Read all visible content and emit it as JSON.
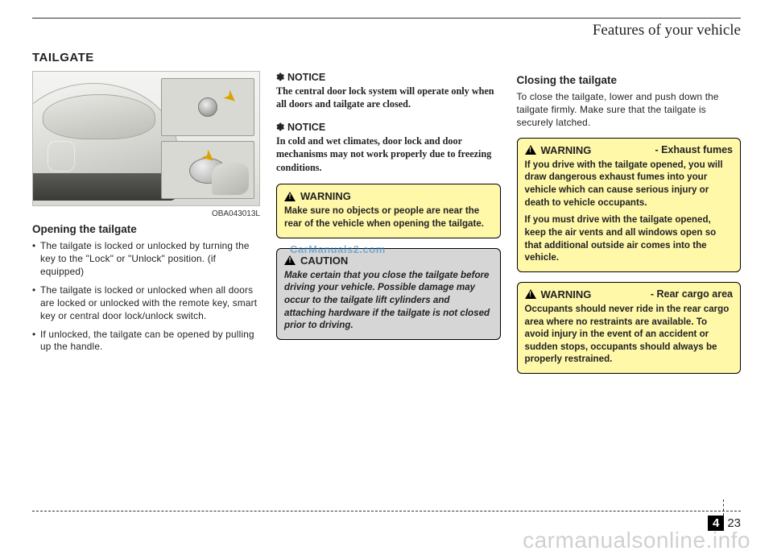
{
  "chapter": "Features of your vehicle",
  "section_title": "TAILGATE",
  "illustration_code": "OBA043013L",
  "col1": {
    "subhead": "Opening the tailgate",
    "bullets": [
      "The tailgate is locked or unlocked by turning the key to the \"Lock\" or \"Unlock\" position. (if equipped)",
      "The tailgate is locked or unlocked when all doors are locked or unlocked with the remote key, smart key or central door lock/unlock switch.",
      "If unlocked, the tailgate can be opened by pulling up the handle."
    ]
  },
  "col2": {
    "notice1_label": "✽ NOTICE",
    "notice1_text": "The central door lock system will operate only when all doors and tailgate are closed.",
    "notice2_label": "✽ NOTICE",
    "notice2_text": "In cold and wet climates, door lock and door mechanisms may not work properly due to freezing conditions.",
    "warn1_title": "WARNING",
    "warn1_body": "Make sure no objects or people are near the rear of the vehicle when opening the tailgate.",
    "caution_title": "CAUTION",
    "caution_body": "Make certain that you close the tailgate before driving your vehicle. Possible damage may occur to the tailgate lift cylinders and attaching hardware if the tailgate is not closed prior to driving."
  },
  "col3": {
    "subhead": "Closing the tailgate",
    "body": "To close the tailgate, lower and push down the tailgate firmly. Make sure that the tailgate is securely latched.",
    "warnA_title": "WARNING",
    "warnA_sub": "- Exhaust fumes",
    "warnA_p1": "If you drive with the tailgate opened, you will draw dangerous exhaust fumes into your vehicle which can cause serious injury or death to vehicle occupants.",
    "warnA_p2": "If you must drive with the tailgate opened, keep the air vents and all windows open so that additional outside air comes into the vehicle.",
    "warnB_title": "WARNING",
    "warnB_sub": "- Rear cargo area",
    "warnB_body": "Occupants should never ride in the rear cargo area where no restraints are available. To avoid injury in the event of an accident or sudden stops, occupants should always be properly restrained."
  },
  "watermark_mid": "CarManuals2.com",
  "page_section": "4",
  "page_number": "23",
  "site_watermark": "carmanualsonline.info"
}
